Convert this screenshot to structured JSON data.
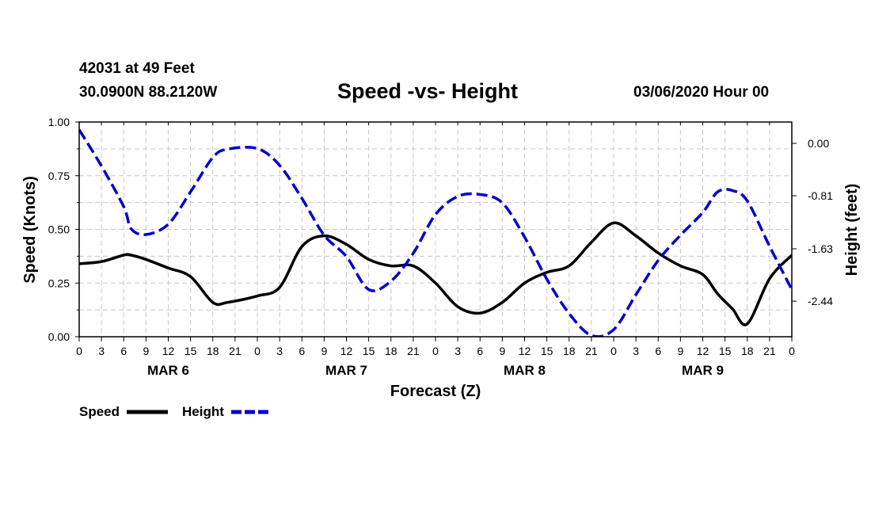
{
  "header": {
    "station": "42031 at 49 Feet",
    "coords": "30.0900N 88.2120W",
    "title": "Speed -vs- Height",
    "date": "03/06/2020 Hour 00"
  },
  "chart_data": {
    "type": "line",
    "title": "Speed -vs- Height",
    "xlabel": "Forecast (Z)",
    "ylabel": "Speed (Knots)",
    "y2label": "Height (feet)",
    "xlim": [
      0,
      96
    ],
    "ylim": [
      0,
      1
    ],
    "y2lim": [
      -2.99,
      0.33
    ],
    "yticks": [
      0,
      0.25,
      0.5,
      0.75,
      1.0
    ],
    "ytick_labels": [
      "0.00",
      "0.25",
      "0.50",
      "0.75",
      "1.00"
    ],
    "y2ticks": [
      0,
      -0.81,
      -1.63,
      -2.44
    ],
    "y2tick_labels": [
      "0.00",
      "-0.81",
      "-1.63",
      "-2.44"
    ],
    "xticks": [
      0,
      3,
      6,
      9,
      12,
      15,
      18,
      21,
      24,
      27,
      30,
      33,
      36,
      39,
      42,
      45,
      48,
      51,
      54,
      57,
      60,
      63,
      66,
      69,
      72,
      75,
      78,
      81,
      84,
      87,
      90,
      93,
      96
    ],
    "xtick_labels": [
      "0",
      "3",
      "6",
      "9",
      "12",
      "15",
      "18",
      "21",
      "0",
      "3",
      "6",
      "9",
      "12",
      "15",
      "18",
      "21",
      "0",
      "3",
      "6",
      "9",
      "12",
      "15",
      "18",
      "21",
      "0",
      "3",
      "6",
      "9",
      "12",
      "15",
      "18",
      "21",
      "0"
    ],
    "days": [
      {
        "label": "MAR 6",
        "center": 12
      },
      {
        "label": "MAR 7",
        "center": 36
      },
      {
        "label": "MAR 8",
        "center": 60
      },
      {
        "label": "MAR 9",
        "center": 84
      }
    ],
    "grid": true,
    "legend_position": "bottom-left",
    "series": [
      {
        "name": "Speed",
        "axis": "left",
        "color": "#000000",
        "style": "solid",
        "x": [
          0,
          3,
          6,
          7,
          9,
          12,
          15,
          18,
          20,
          24,
          27,
          30,
          33,
          36,
          39,
          42,
          45,
          48,
          51,
          54,
          57,
          60,
          63,
          66,
          69,
          72,
          75,
          78,
          81,
          84,
          86,
          88,
          90,
          93,
          96
        ],
        "values": [
          0.34,
          0.35,
          0.38,
          0.38,
          0.36,
          0.32,
          0.28,
          0.16,
          0.16,
          0.19,
          0.23,
          0.42,
          0.47,
          0.43,
          0.36,
          0.33,
          0.33,
          0.25,
          0.14,
          0.11,
          0.16,
          0.25,
          0.3,
          0.33,
          0.44,
          0.53,
          0.47,
          0.39,
          0.33,
          0.29,
          0.2,
          0.13,
          0.06,
          0.27,
          0.38
        ]
      },
      {
        "name": "Height",
        "axis": "right",
        "color": "#0000cc",
        "style": "dashed",
        "x": [
          0,
          3,
          6,
          7,
          9,
          12,
          15,
          18,
          20,
          24,
          27,
          30,
          33,
          36,
          39,
          42,
          45,
          48,
          51,
          54,
          57,
          60,
          63,
          66,
          69,
          72,
          75,
          78,
          81,
          84,
          86,
          88,
          90,
          93,
          96
        ],
        "values": [
          0.21,
          -0.35,
          -0.98,
          -1.32,
          -1.41,
          -1.25,
          -0.75,
          -0.22,
          -0.09,
          -0.08,
          -0.34,
          -0.85,
          -1.42,
          -1.75,
          -2.26,
          -2.13,
          -1.7,
          -1.1,
          -0.82,
          -0.79,
          -0.92,
          -1.45,
          -2.1,
          -2.63,
          -2.97,
          -2.88,
          -2.34,
          -1.81,
          -1.42,
          -1.07,
          -0.75,
          -0.73,
          -0.89,
          -1.59,
          -2.26
        ]
      }
    ]
  },
  "legend": {
    "speed_label": "Speed",
    "height_label": "Height"
  }
}
